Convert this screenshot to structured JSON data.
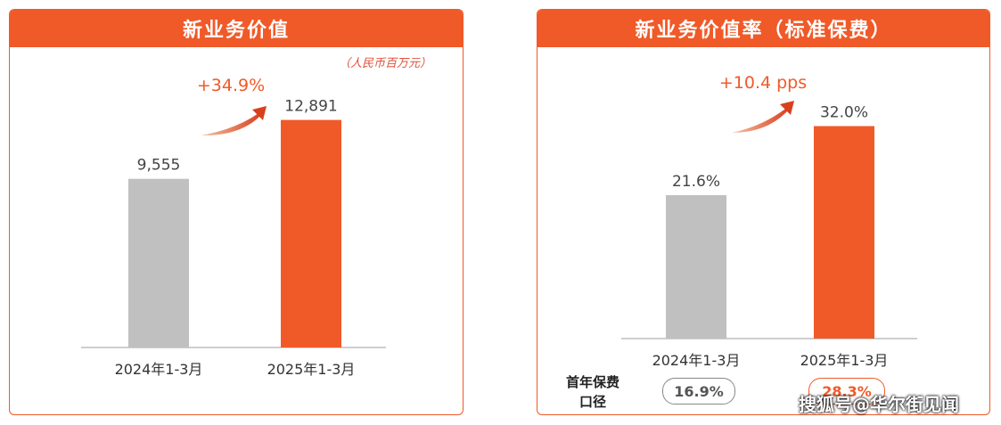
{
  "unit_note": "（人民币百万元）",
  "first_year_label": "首年保费\n口径",
  "first_year_values": [
    "16.9%",
    "28.3%"
  ],
  "watermark": "搜狐号@华尔街见闻",
  "colors": {
    "accent": "#f05a28",
    "gray_bar": "#c0c0c0",
    "growth_text": "#f05a28"
  },
  "chart_data": [
    {
      "type": "bar",
      "title": "新业务价值",
      "categories": [
        "2024年1-3月",
        "2025年1-3月"
      ],
      "values": [
        9555,
        12891
      ],
      "value_labels": [
        "9,555",
        "12,891"
      ],
      "growth_label": "+34.9%",
      "ylim": [
        0,
        16000
      ]
    },
    {
      "type": "bar",
      "title": "新业务价值率（标准保费）",
      "categories": [
        "2024年1-3月",
        "2025年1-3月"
      ],
      "values": [
        21.6,
        32.0
      ],
      "value_labels": [
        "21.6%",
        "32.0%"
      ],
      "growth_label": "+10.4 pps",
      "ylim": [
        0,
        41.2
      ]
    }
  ]
}
